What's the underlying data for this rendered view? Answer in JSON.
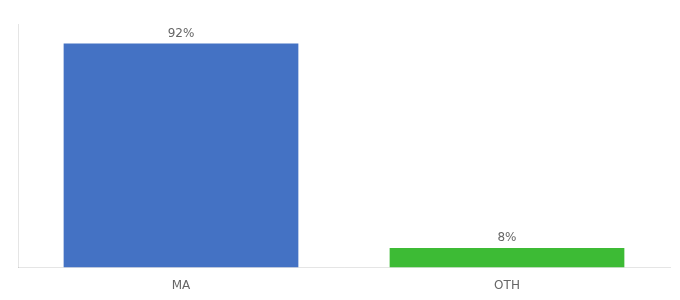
{
  "chart_data": {
    "type": "bar",
    "categories": [
      "MA",
      "OTH"
    ],
    "values": [
      92,
      8
    ],
    "value_labels": [
      "92%",
      "8%"
    ],
    "colors": [
      "#4472c4",
      "#3dbb35"
    ],
    "ylim": [
      0,
      100
    ],
    "grid": false,
    "data_labels": true,
    "tick_labels": "x"
  }
}
